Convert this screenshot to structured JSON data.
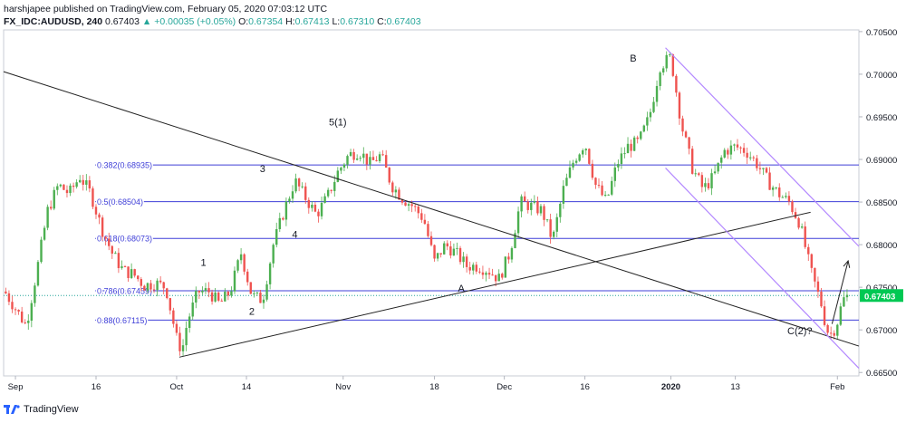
{
  "header": {
    "published": "harshjapee published on TradingView.com, February 05, 2020 07:03:12 UTC",
    "symbol": "FX_IDC:AUDUSD, 240",
    "last": "0.67403",
    "change": "+0.00035 (+0.05%)",
    "o_label": "O:",
    "o": "0.67354",
    "h_label": "H:",
    "h": "0.67413",
    "l_label": "L:",
    "l": "0.67310",
    "c_label": "C:",
    "c": "0.67403"
  },
  "footer": {
    "brand": "TradingView"
  },
  "colors": {
    "up": "#26a69a",
    "candle_up": "#4caf50",
    "candle_down": "#ef5350",
    "fib": "#3f3fd8",
    "channel": "#b388ff",
    "trend": "#222222",
    "price_box": "#00c853"
  },
  "chart_data": {
    "type": "candlestick",
    "symbol": "AUDUSD",
    "timeframe": "240",
    "y_ticks": [
      0.665,
      0.67,
      0.675,
      0.68,
      0.685,
      0.69,
      0.695,
      0.7,
      0.705
    ],
    "y_tick_labels": [
      "0.66500",
      "0.67000",
      "0.67500",
      "0.68000",
      "0.68500",
      "0.69000",
      "0.69500",
      "0.70000",
      "0.70500"
    ],
    "ylim": [
      0.6646,
      0.7052
    ],
    "x_ticks": [
      {
        "label": "Sep",
        "day": 0
      },
      {
        "label": "16",
        "day": 15
      },
      {
        "label": "Oct",
        "day": 30
      },
      {
        "label": "14",
        "day": 43
      },
      {
        "label": "Nov",
        "day": 61
      },
      {
        "label": "18",
        "day": 78
      },
      {
        "label": "Dec",
        "day": 91
      },
      {
        "label": "16",
        "day": 106
      },
      {
        "label": "2020",
        "day": 122
      },
      {
        "label": "13",
        "day": 134
      },
      {
        "label": "Feb",
        "day": 153
      }
    ],
    "xlim": [
      -2.2,
      157
    ],
    "current_price": "0.67403",
    "price_path": [
      [
        -2,
        0.6745
      ],
      [
        2,
        0.6705
      ],
      [
        4,
        0.677
      ],
      [
        6,
        0.684
      ],
      [
        8,
        0.687
      ],
      [
        10,
        0.686
      ],
      [
        12,
        0.688
      ],
      [
        14,
        0.686
      ],
      [
        16,
        0.682
      ],
      [
        18,
        0.679
      ],
      [
        20,
        0.677
      ],
      [
        22,
        0.6765
      ],
      [
        24,
        0.6752
      ],
      [
        26,
        0.6755
      ],
      [
        28,
        0.675
      ],
      [
        30,
        0.669
      ],
      [
        31,
        0.6675
      ],
      [
        32,
        0.671
      ],
      [
        34,
        0.6745
      ],
      [
        36,
        0.6745
      ],
      [
        38,
        0.673
      ],
      [
        40,
        0.6745
      ],
      [
        42,
        0.679
      ],
      [
        44,
        0.674
      ],
      [
        46,
        0.6735
      ],
      [
        48,
        0.68
      ],
      [
        50,
        0.684
      ],
      [
        52,
        0.6875
      ],
      [
        54,
        0.6855
      ],
      [
        56,
        0.6835
      ],
      [
        58,
        0.6855
      ],
      [
        60,
        0.6885
      ],
      [
        62,
        0.6905
      ],
      [
        64,
        0.691
      ],
      [
        66,
        0.6895
      ],
      [
        68,
        0.6905
      ],
      [
        70,
        0.687
      ],
      [
        72,
        0.6855
      ],
      [
        74,
        0.6845
      ],
      [
        76,
        0.683
      ],
      [
        78,
        0.678
      ],
      [
        80,
        0.68
      ],
      [
        82,
        0.679
      ],
      [
        84,
        0.6775
      ],
      [
        86,
        0.6775
      ],
      [
        88,
        0.677
      ],
      [
        90,
        0.676
      ],
      [
        92,
        0.679
      ],
      [
        94,
        0.685
      ],
      [
        96,
        0.6845
      ],
      [
        98,
        0.684
      ],
      [
        100,
        0.6805
      ],
      [
        102,
        0.6865
      ],
      [
        104,
        0.69
      ],
      [
        106,
        0.692
      ],
      [
        108,
        0.687
      ],
      [
        110,
        0.685
      ],
      [
        112,
        0.6895
      ],
      [
        114,
        0.6915
      ],
      [
        116,
        0.692
      ],
      [
        118,
        0.695
      ],
      [
        120,
        0.701
      ],
      [
        122,
        0.702
      ],
      [
        124,
        0.694
      ],
      [
        126,
        0.689
      ],
      [
        128,
        0.6865
      ],
      [
        130,
        0.688
      ],
      [
        132,
        0.691
      ],
      [
        134,
        0.6915
      ],
      [
        136,
        0.691
      ],
      [
        138,
        0.6895
      ],
      [
        140,
        0.6875
      ],
      [
        142,
        0.686
      ],
      [
        144,
        0.685
      ],
      [
        146,
        0.6825
      ],
      [
        148,
        0.677
      ],
      [
        150,
        0.673
      ],
      [
        151,
        0.67
      ],
      [
        152,
        0.6695
      ],
      [
        153,
        0.671
      ],
      [
        154,
        0.6735
      ],
      [
        155,
        0.674
      ]
    ],
    "fib_levels": [
      {
        "label": "0.382(0.68935)",
        "value": 0.68935
      },
      {
        "label": "0.5(0.68504)",
        "value": 0.68504
      },
      {
        "label": "0.618(0.68073)",
        "value": 0.68073
      },
      {
        "label": "0.786(0.67459)",
        "value": 0.67459
      },
      {
        "label": "0.88(0.67115)",
        "value": 0.67115
      }
    ],
    "wave_labels": [
      {
        "text": "1",
        "day": 35,
        "price": 0.6775
      },
      {
        "text": "2",
        "day": 44,
        "price": 0.6718
      },
      {
        "text": "3",
        "day": 46,
        "price": 0.6885
      },
      {
        "text": "4",
        "day": 52,
        "price": 0.6808
      },
      {
        "text": "5(1)",
        "day": 60,
        "price": 0.694
      },
      {
        "text": "A",
        "day": 83,
        "price": 0.6745
      },
      {
        "text": "B",
        "day": 115,
        "price": 0.7015
      },
      {
        "text": "C(2)?",
        "day": 146,
        "price": 0.6695
      }
    ],
    "trendlines": [
      {
        "name": "down",
        "from": [
          -2.2,
          0.7003
        ],
        "to": [
          157,
          0.6681
        ]
      },
      {
        "name": "up",
        "from": [
          30.5,
          0.6668
        ],
        "to": [
          148,
          0.6838
        ]
      }
    ],
    "channel": [
      {
        "from": [
          121,
          0.7031
        ],
        "to": [
          157,
          0.6798
        ]
      },
      {
        "from": [
          121,
          0.689
        ],
        "to": [
          157,
          0.6655
        ]
      }
    ],
    "arrow": {
      "from": [
        152,
        0.6707
      ],
      "to": [
        155,
        0.6781
      ]
    }
  }
}
